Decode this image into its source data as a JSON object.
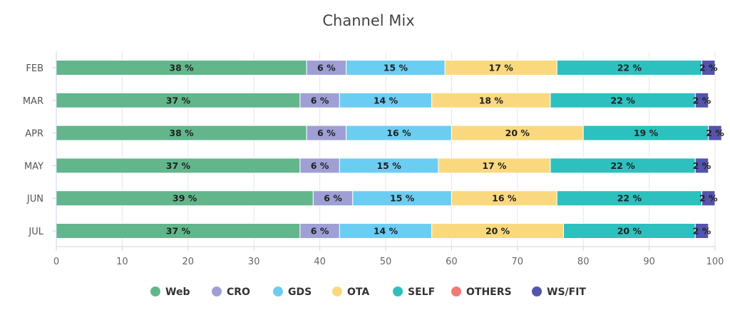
{
  "chart_data": {
    "type": "bar",
    "orientation": "horizontal",
    "stacked": true,
    "title": "Channel Mix",
    "xlabel": "",
    "ylabel": "",
    "xlim": [
      0,
      100
    ],
    "x_ticks": [
      0,
      10,
      20,
      30,
      40,
      50,
      60,
      70,
      80,
      90,
      100
    ],
    "categories": [
      "FEB",
      "MAR",
      "APR",
      "MAY",
      "JUN",
      "JUL"
    ],
    "label_suffix": " %",
    "legend_position": "bottom",
    "grid": true,
    "series": [
      {
        "name": "Web",
        "color": "#63b68c",
        "values": [
          38,
          37,
          38,
          37,
          39,
          37
        ]
      },
      {
        "name": "CRO",
        "color": "#9f9fd6",
        "values": [
          6,
          6,
          6,
          6,
          6,
          6
        ]
      },
      {
        "name": "GDS",
        "color": "#6ccdf2",
        "values": [
          15,
          14,
          16,
          15,
          15,
          14
        ]
      },
      {
        "name": "OTA",
        "color": "#fad97e",
        "values": [
          17,
          18,
          20,
          17,
          16,
          20
        ]
      },
      {
        "name": "SELF",
        "color": "#2cc1bf",
        "values": [
          22,
          22,
          19,
          22,
          22,
          20
        ]
      },
      {
        "name": "OTHERS",
        "color": "#ef7b74",
        "values": [
          0,
          0,
          0,
          0,
          0,
          0
        ]
      },
      {
        "name": "WS/FIT",
        "color": "#5454ad",
        "values": [
          2,
          2,
          2,
          2,
          2,
          2
        ]
      }
    ]
  }
}
